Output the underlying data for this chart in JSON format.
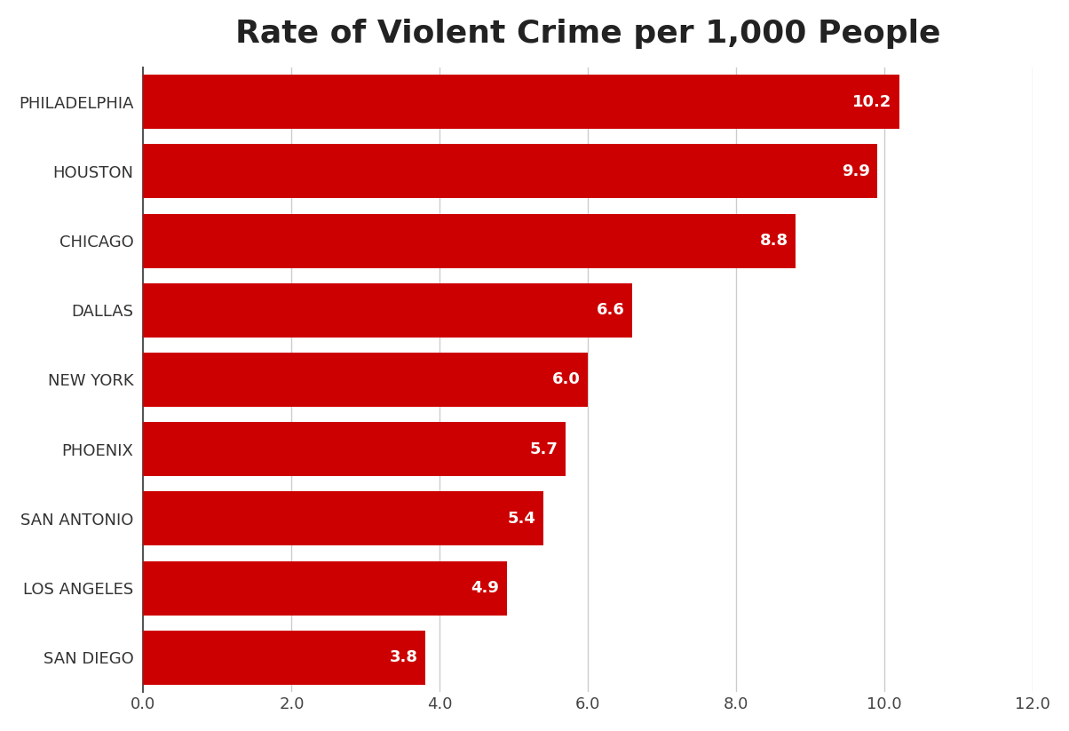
{
  "title": "Rate of Violent Crime per 1,000 People",
  "categories": [
    "SAN DIEGO",
    "LOS ANGELES",
    "SAN ANTONIO",
    "PHOENIX",
    "NEW YORK",
    "DALLAS",
    "CHICAGO",
    "HOUSTON",
    "PHILADELPHIA"
  ],
  "values": [
    3.8,
    4.9,
    5.4,
    5.7,
    6.0,
    6.6,
    8.8,
    9.9,
    10.2
  ],
  "bar_color": "#cc0000",
  "label_color": "#ffffff",
  "title_fontsize": 26,
  "label_fontsize": 13,
  "ytick_fontsize": 13,
  "xtick_fontsize": 13,
  "xlim": [
    0,
    12.0
  ],
  "xticks": [
    0.0,
    2.0,
    4.0,
    6.0,
    8.0,
    10.0,
    12.0
  ],
  "background_color": "#ffffff",
  "grid_color": "#cccccc",
  "bar_height": 0.78
}
